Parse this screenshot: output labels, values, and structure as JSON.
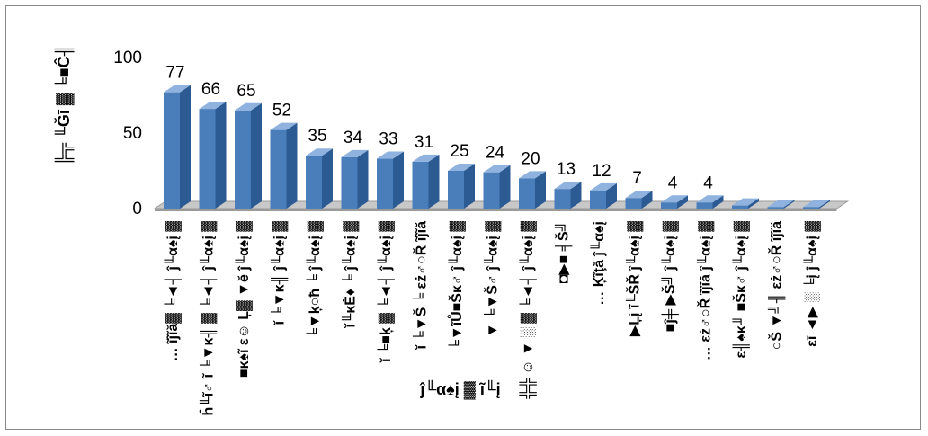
{
  "chart_data": {
    "type": "bar",
    "style": "3d-column",
    "title": "",
    "ylabel": "╠╦ ╙Ğī ▓ ╘■Ĉ╢",
    "xlabel": "ĵ╙α♠į ▓ ĩ╙į",
    "ylim": [
      0,
      100
    ],
    "yticks": [
      "0",
      "50",
      "100"
    ],
    "grid": false,
    "legend": "none",
    "bar_color": "#4a7ebb",
    "categories": [
      "… ĩĵĩă▓ ╘◄┤ ĵ╙α♠į ▓",
      "ĥ╙ĩ♂ ĩ ╘▼κ╢ ▓ ╘◄┤ ĵ╙α♠į ▓",
      "■κ♠ĩ ε☺ Ļ▓ ▼ĕ ĵ╙α♠į ▓",
      "ĭ ╘▼κ╢ ĵ╙α♠į ▓",
      "╘▼ķ○ħ ╘ ĵ╙α♠į ▓",
      "ĭ╙κĖ♦ ╘ ĵ╙α♠į ▓",
      "ĭ ╘■ķ ▓ ╘◄┤ ĵ╙α♠į ▓",
      "ĭ ╘▼Š ╘ εż♂○Ř ĩĵĩă",
      "╘▼ĩŮ■Šκ♂ ĵ╙α♠į ▓",
      "▼ ╘▼Š♂ ĵ╙α♠į ▓",
      "╬╬ ☺ ▼ ░ ▓ ╘◄┤ ĵ╙α♠į ▓",
      "◘▶■ ╡Š╝",
      "… Ķĩţă ĵ╙α♠į",
      "▶Ļį ĩ╙ŠŘ ĵ╙α♠į ▓",
      "■ĵ╪ ▶Š╝ ĵ╙α♠į ▓",
      "… εż♂○Ř ĩĵĩă ĵ╙α♠į ▓",
      "ε╢♠κ╜ ■Šκ♂ ĵ╙α♠į ▓",
      "○Š ▼╝╢ εż♂○Ř ĩĵĩă",
      "εī ◄▶ ░ ╘į ĵ╙α♠į ▓"
    ],
    "values": [
      77,
      66,
      65,
      52,
      35,
      34,
      33,
      31,
      25,
      24,
      20,
      13,
      12,
      7,
      4,
      4,
      2,
      1,
      1
    ],
    "data_labels": [
      "77",
      "66",
      "65",
      "52",
      "35",
      "34",
      "33",
      "31",
      "25",
      "24",
      "20",
      "13",
      "12",
      "7",
      "4",
      "4",
      "",
      "",
      ""
    ]
  }
}
